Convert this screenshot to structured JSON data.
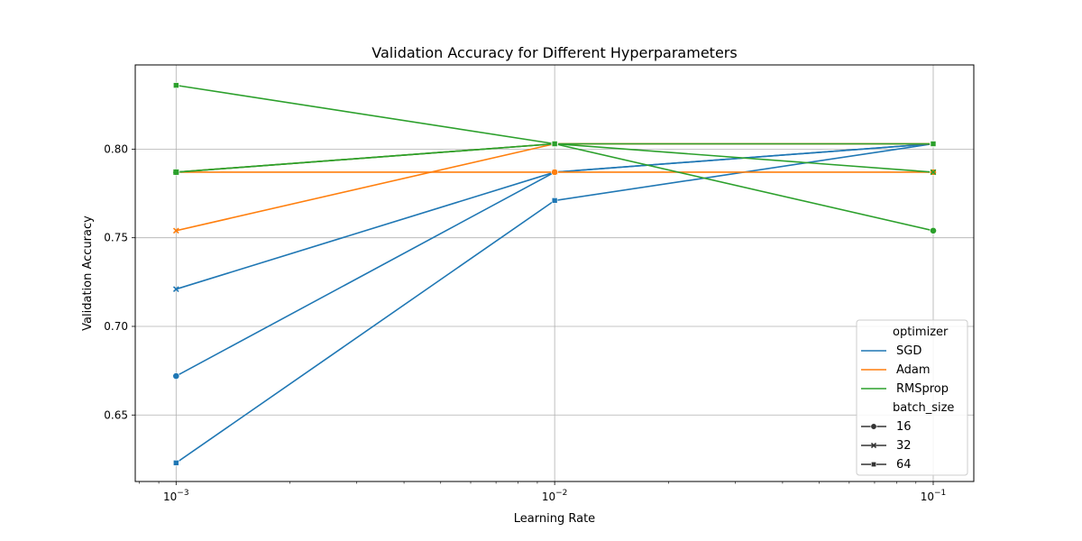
{
  "chart_data": {
    "type": "line",
    "title": "Validation Accuracy for Different Hyperparameters",
    "xlabel": "Learning Rate",
    "ylabel": "Validation Accuracy",
    "xscale": "log",
    "x": [
      0.001,
      0.01,
      0.1
    ],
    "x_tick_labels": [
      {
        "base": "10",
        "exp": "−3"
      },
      {
        "base": "10",
        "exp": "−2"
      },
      {
        "base": "10",
        "exp": "−1"
      }
    ],
    "xlim": [
      0.00078,
      0.128
    ],
    "ylim": [
      0.6125,
      0.8475
    ],
    "y_ticks": [
      0.65,
      0.7,
      0.75,
      0.8
    ],
    "y_tick_labels": [
      "0.65",
      "0.70",
      "0.75",
      "0.80"
    ],
    "grid": true,
    "legend_position": "bottom-right",
    "legend": {
      "hue_title": "optimizer",
      "style_title": "batch_size"
    },
    "hue": [
      {
        "name": "SGD",
        "color": "#1f77b4"
      },
      {
        "name": "Adam",
        "color": "#ff7f0e"
      },
      {
        "name": "RMSprop",
        "color": "#2ca02c"
      }
    ],
    "styles": [
      {
        "name": "16",
        "marker": "circle"
      },
      {
        "name": "32",
        "marker": "x"
      },
      {
        "name": "64",
        "marker": "square"
      }
    ],
    "series": [
      {
        "optimizer": "SGD",
        "batch_size": "16",
        "values": [
          0.672,
          0.787,
          0.803
        ]
      },
      {
        "optimizer": "SGD",
        "batch_size": "32",
        "values": [
          0.721,
          0.787,
          0.803
        ]
      },
      {
        "optimizer": "SGD",
        "batch_size": "64",
        "values": [
          0.623,
          0.771,
          0.803
        ]
      },
      {
        "optimizer": "Adam",
        "batch_size": "16",
        "values": [
          0.787,
          0.787,
          0.787
        ]
      },
      {
        "optimizer": "Adam",
        "batch_size": "32",
        "values": [
          0.754,
          0.803,
          0.803
        ]
      },
      {
        "optimizer": "Adam",
        "batch_size": "64",
        "values": [
          0.787,
          0.803,
          0.803
        ]
      },
      {
        "optimizer": "RMSprop",
        "batch_size": "16",
        "values": [
          0.787,
          0.803,
          0.754
        ]
      },
      {
        "optimizer": "RMSprop",
        "batch_size": "32",
        "values": [
          0.787,
          0.803,
          0.787
        ]
      },
      {
        "optimizer": "RMSprop",
        "batch_size": "64",
        "values": [
          0.836,
          0.803,
          0.803
        ]
      }
    ]
  }
}
